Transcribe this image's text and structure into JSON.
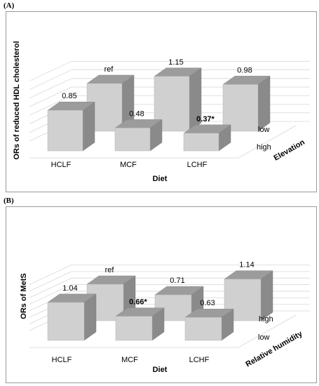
{
  "panels": [
    {
      "label": "(A)",
      "chart_data": {
        "type": "bar",
        "subtype": "3d-bar",
        "categories": [
          "HCLF",
          "MCF",
          "LCHF"
        ],
        "xlabel": "Diet",
        "ylabel": "ORs of reduced HDL cholesterol",
        "depth_label": "Elevation",
        "depth_levels": [
          "high",
          "low"
        ],
        "series": [
          {
            "name": "high",
            "values": [
              0.85,
              0.48,
              0.37
            ],
            "labels": [
              "0.85",
              "0.48",
              "0.37*"
            ],
            "bold": [
              false,
              false,
              true
            ]
          },
          {
            "name": "low",
            "values": [
              1.0,
              1.15,
              0.98
            ],
            "labels": [
              "ref",
              "1.15",
              "0.98"
            ],
            "bold": [
              false,
              false,
              false
            ]
          }
        ],
        "ylim": [
          0,
          1.4
        ],
        "grid": true,
        "bar_color": "#d0d0d0"
      }
    },
    {
      "label": "(B)",
      "chart_data": {
        "type": "bar",
        "subtype": "3d-bar",
        "categories": [
          "HCLF",
          "MCF",
          "LCHF"
        ],
        "xlabel": "Diet",
        "ylabel": "ORs of MetS",
        "depth_label": "Relative humidity",
        "depth_levels": [
          "low",
          "high"
        ],
        "series": [
          {
            "name": "low",
            "values": [
              1.04,
              0.66,
              0.63
            ],
            "labels": [
              "1.04",
              "0.66*",
              "0.63"
            ],
            "bold": [
              false,
              true,
              false
            ]
          },
          {
            "name": "high",
            "values": [
              1.0,
              0.71,
              1.14
            ],
            "labels": [
              "ref",
              "0.71",
              "1.14"
            ],
            "bold": [
              false,
              false,
              false
            ]
          }
        ],
        "ylim": [
          0,
          1.4
        ],
        "grid": true,
        "bar_color": "#d0d0d0"
      }
    }
  ]
}
